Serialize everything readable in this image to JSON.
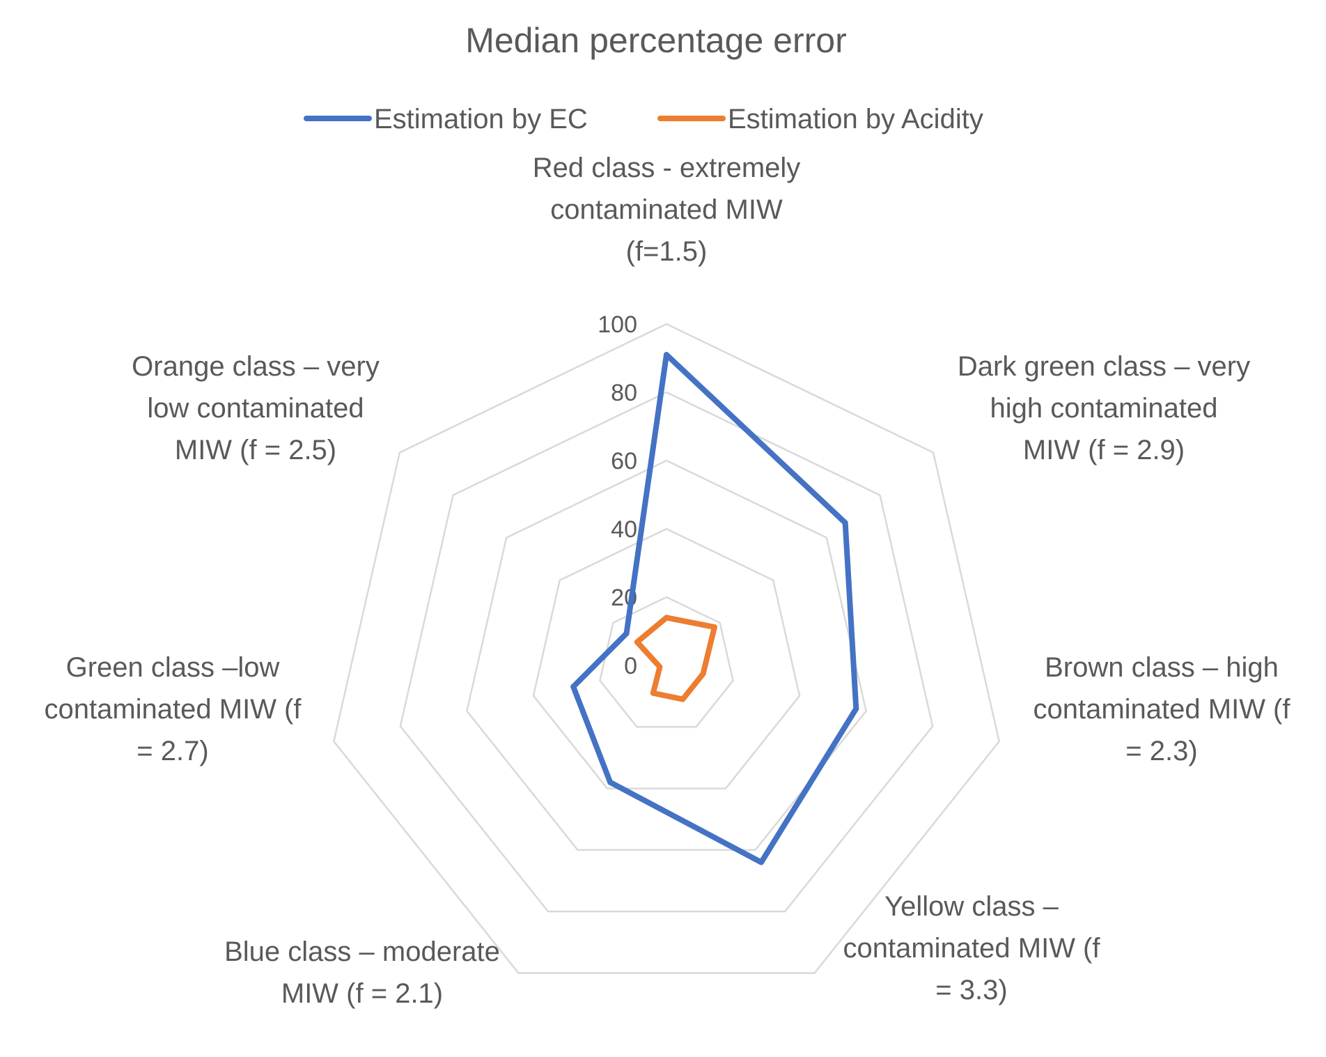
{
  "chart_data": {
    "type": "radar",
    "title": "Median percentage error",
    "categories": [
      [
        "Red class - extremely",
        "contaminated MIW",
        "(f=1.5)"
      ],
      [
        "Dark green class – very",
        "high contaminated",
        "MIW (f = 2.9)"
      ],
      [
        "Brown class – high",
        "contaminated MIW (f",
        "= 2.3)"
      ],
      [
        "Yellow class –",
        "contaminated MIW (f",
        "= 3.3)"
      ],
      [
        "Blue class – moderate",
        "MIW (f = 2.1)"
      ],
      [
        "Green class –low",
        "contaminated MIW (f",
        "= 2.7)"
      ],
      [
        "Orange class – very",
        "low contaminated",
        "MIW (f = 2.5)"
      ]
    ],
    "axis": {
      "min": 0,
      "max": 100,
      "ticks": [
        0,
        20,
        40,
        60,
        80,
        100
      ]
    },
    "series": [
      {
        "name": "Estimation by EC",
        "color": "#4472C4",
        "values": [
          91,
          67,
          57,
          64,
          38,
          28,
          15
        ]
      },
      {
        "name": "Estimation by Acidity",
        "color": "#ED7D31",
        "values": [
          14,
          18,
          11,
          11,
          9,
          2,
          11
        ]
      }
    ],
    "legend": "top",
    "grid": true
  }
}
